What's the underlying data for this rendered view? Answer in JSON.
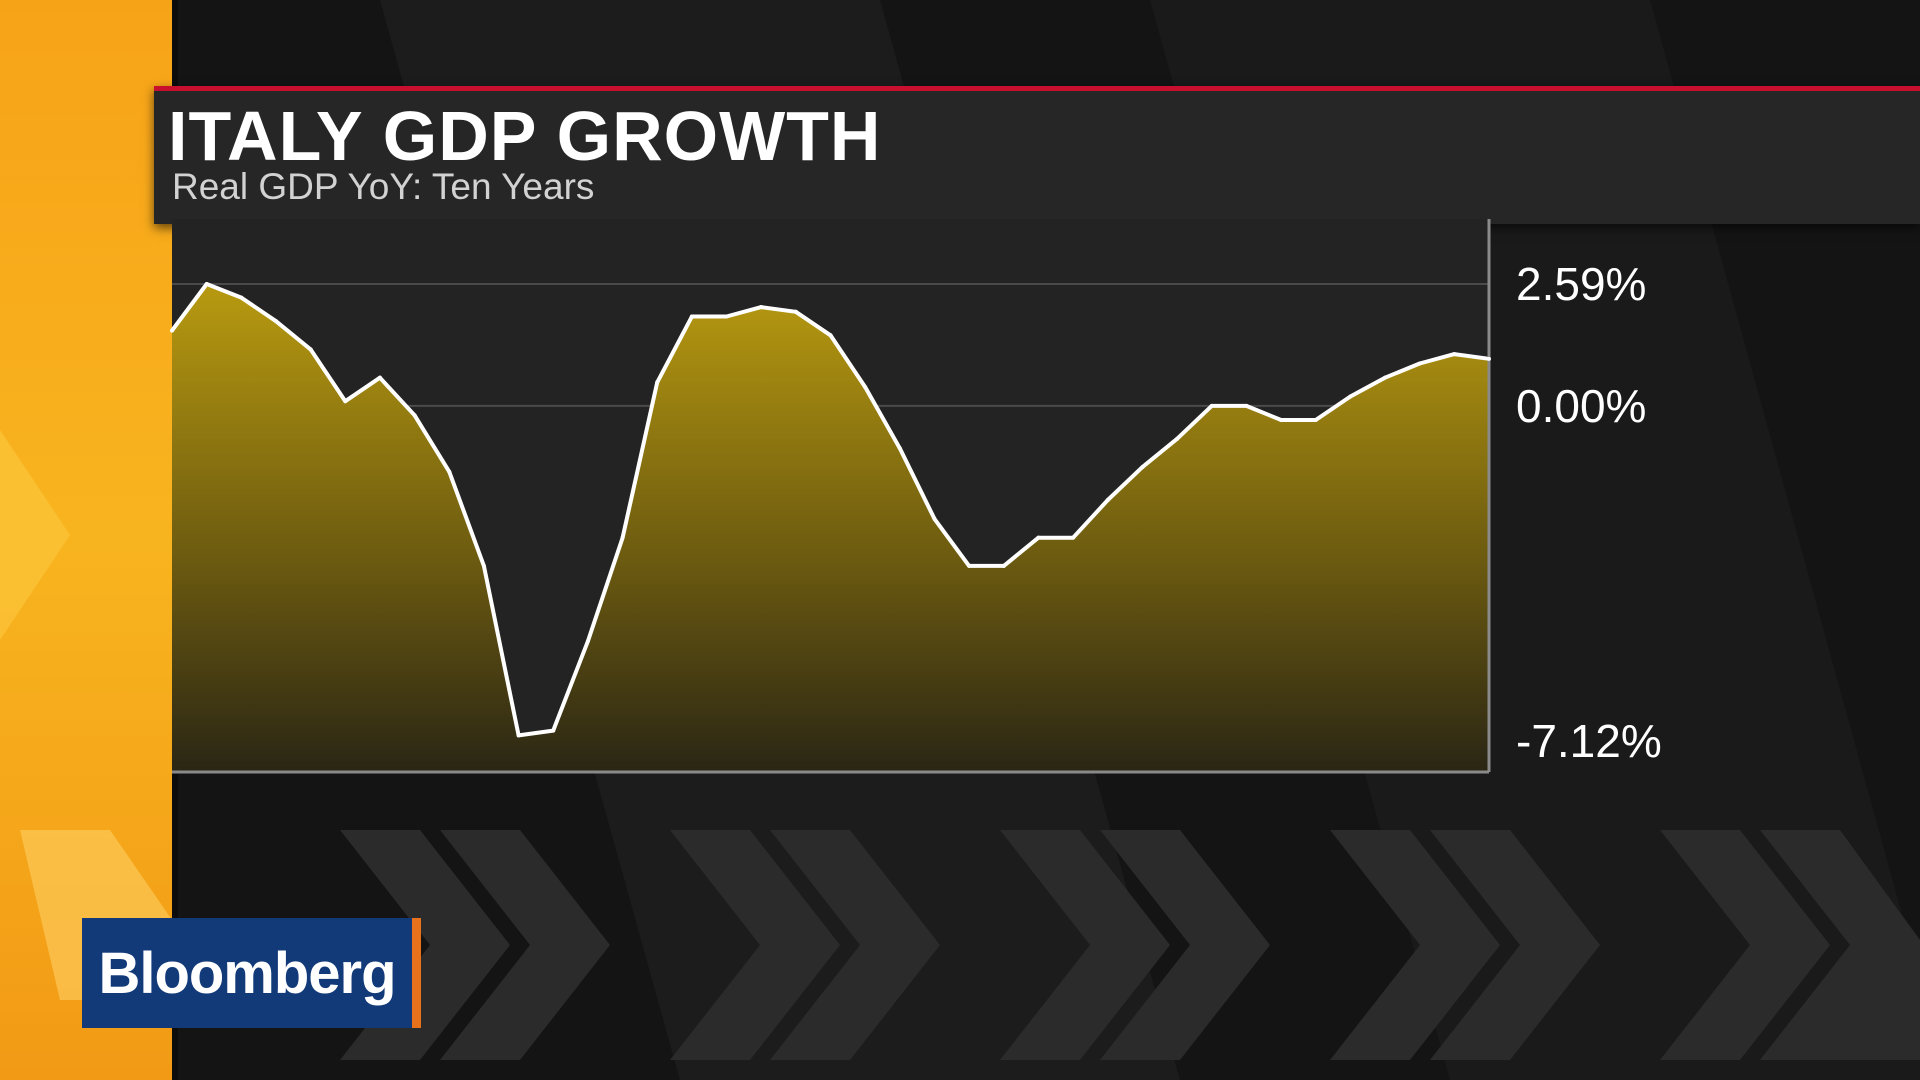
{
  "broadcast": {
    "logo_text": "Bloomberg",
    "accent_color": "#c8102e",
    "brand_color": "#123a79"
  },
  "chart_data": {
    "type": "area",
    "title": "ITALY GDP GROWTH",
    "subtitle": "Real GDP YoY: Ten Years",
    "ylim": [
      -7.12,
      2.59
    ],
    "y_ticks": [
      {
        "value": 2.59,
        "label": "2.59%"
      },
      {
        "value": 0.0,
        "label": "0.00%"
      },
      {
        "value": -7.12,
        "label": "-7.12%"
      }
    ],
    "y_axis_position": "right",
    "grid": true,
    "series": [
      {
        "line_color": "#ffffff",
        "fill_color": "#b89a10",
        "values": [
          1.6,
          2.59,
          2.3,
          1.8,
          1.2,
          0.1,
          0.6,
          -0.2,
          -1.4,
          -3.4,
          -7.0,
          -6.9,
          -5.0,
          -2.8,
          0.5,
          1.9,
          1.9,
          2.1,
          2.0,
          1.5,
          0.4,
          -0.9,
          -2.4,
          -3.4,
          -3.4,
          -2.8,
          -2.8,
          -2.0,
          -1.3,
          -0.7,
          0.0,
          0.0,
          -0.3,
          -0.3,
          0.2,
          0.6,
          0.9,
          1.1,
          1.0
        ]
      }
    ]
  }
}
